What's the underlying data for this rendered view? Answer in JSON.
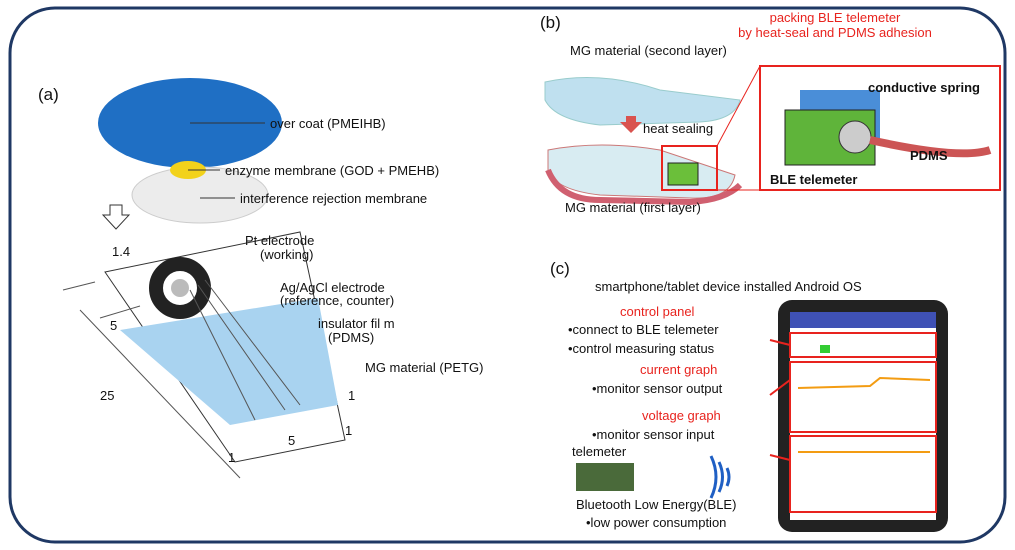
{
  "panel_a": {
    "label": "(a)",
    "layers": [
      "over coat (PMEIHB)",
      "enzyme membrane (GOD + PMEHB)",
      "interference rejection membrane"
    ],
    "callouts": [
      "Pt electrode",
      "(working)",
      "Ag/AgCl electrode",
      "(reference, counter)",
      "insulator fil m",
      "(PDMS)",
      "MG material (PETG)"
    ],
    "dimensions": [
      "1.4",
      "5",
      "25",
      "1",
      "5",
      "1",
      "1"
    ]
  },
  "panel_b": {
    "label": "(b)",
    "second_layer": "MG material (second layer)",
    "heat_sealing": "heat sealing",
    "first_layer": "MG material (first layer)",
    "packing": [
      "packing BLE telemeter",
      "by heat-seal and PDMS adhesion"
    ],
    "conductive_spring": "conductive spring",
    "pdms": "PDMS",
    "ble_telemeter": "BLE telemeter"
  },
  "panel_c": {
    "label": "(c)",
    "device": "smartphone/tablet device installed Android OS",
    "control_panel": "control panel",
    "control_items": [
      "•connect to BLE telemeter",
      "•control measuring status"
    ],
    "current_graph": "current graph",
    "current_item": "•monitor sensor output",
    "voltage_graph": "voltage graph",
    "voltage_item": "•monitor sensor input",
    "telemeter": "telemeter",
    "ble": "Bluetooth Low Energy(BLE)",
    "ble_item": "•low power consumption"
  }
}
